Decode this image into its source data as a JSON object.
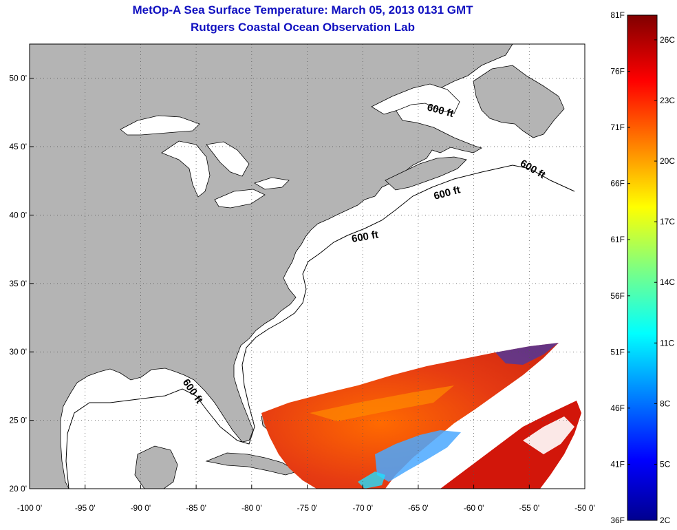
{
  "title": {
    "line1": "MetOp-A Sea Surface Temperature:  March 05, 2013 0131 GMT",
    "line2": "Rutgers Coastal Ocean Observation Lab"
  },
  "map": {
    "lon_range": [
      -100,
      -50
    ],
    "lat_range": [
      20,
      52.5
    ],
    "x_ticks": [
      "-100 0'",
      "-95 0'",
      "-90 0'",
      "-85 0'",
      "-80 0'",
      "-75 0'",
      "-70 0'",
      "-65 0'",
      "-60 0'",
      "-55 0'",
      "-50 0'"
    ],
    "y_ticks": [
      "20 0'",
      "25 0'",
      "30 0'",
      "35 0'",
      "40 0'",
      "45 0'",
      "50 0'"
    ],
    "grid": "dotted",
    "land_color": "#b4b4b4",
    "ocean_color": "#ffffff",
    "isobath_label": "600 ft"
  },
  "colorbar": {
    "f_labels": [
      "81F",
      "76F",
      "71F",
      "66F",
      "61F",
      "56F",
      "51F",
      "46F",
      "41F",
      "36F"
    ],
    "c_labels": [
      "26C",
      "23C",
      "20C",
      "17C",
      "14C",
      "11C",
      "8C",
      "5C",
      "2C"
    ],
    "min_color": "#00008f",
    "max_color": "#800000"
  }
}
